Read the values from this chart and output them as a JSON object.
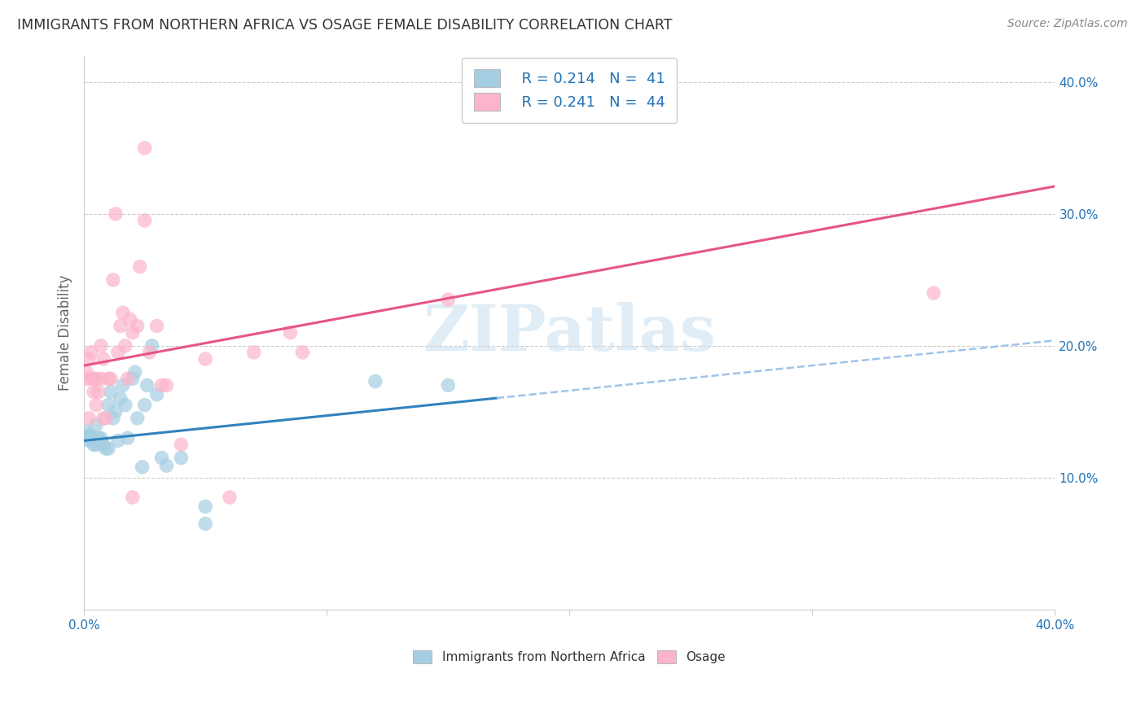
{
  "title": "IMMIGRANTS FROM NORTHERN AFRICA VS OSAGE FEMALE DISABILITY CORRELATION CHART",
  "source": "Source: ZipAtlas.com",
  "ylabel": "Female Disability",
  "watermark": "ZIPatlas",
  "xlim": [
    0.0,
    0.4
  ],
  "ylim": [
    0.0,
    0.42
  ],
  "yticks": [
    0.1,
    0.2,
    0.3,
    0.4
  ],
  "ytick_labels": [
    "10.0%",
    "20.0%",
    "30.0%",
    "40.0%"
  ],
  "legend_r1": "R = 0.214",
  "legend_n1": "N =  41",
  "legend_r2": "R = 0.241",
  "legend_n2": "N =  44",
  "blue_scatter_color": "#a6cee3",
  "pink_scatter_color": "#fbb4c9",
  "blue_line_color": "#3182bd",
  "pink_line_color": "#e6548a",
  "dashed_color": "#a0c4e8",
  "legend_text_color": "#2171b5",
  "title_color": "#333333",
  "source_color": "#888888",
  "grid_color": "#cccccc",
  "background_color": "#ffffff",
  "blue_points_x": [
    0.001,
    0.001,
    0.002,
    0.002,
    0.003,
    0.003,
    0.004,
    0.004,
    0.005,
    0.005,
    0.006,
    0.006,
    0.007,
    0.007,
    0.008,
    0.009,
    0.01,
    0.01,
    0.011,
    0.012,
    0.013,
    0.014,
    0.015,
    0.016,
    0.017,
    0.018,
    0.02,
    0.021,
    0.022,
    0.024,
    0.025,
    0.026,
    0.028,
    0.03,
    0.032,
    0.034,
    0.04,
    0.05,
    0.12,
    0.15,
    0.05
  ],
  "blue_points_y": [
    0.13,
    0.135,
    0.128,
    0.132,
    0.13,
    0.132,
    0.128,
    0.125,
    0.125,
    0.14,
    0.13,
    0.128,
    0.13,
    0.127,
    0.125,
    0.122,
    0.122,
    0.155,
    0.165,
    0.145,
    0.15,
    0.128,
    0.16,
    0.17,
    0.155,
    0.13,
    0.175,
    0.18,
    0.145,
    0.108,
    0.155,
    0.17,
    0.2,
    0.163,
    0.115,
    0.109,
    0.115,
    0.078,
    0.173,
    0.17,
    0.065
  ],
  "pink_points_x": [
    0.001,
    0.001,
    0.002,
    0.002,
    0.003,
    0.003,
    0.004,
    0.004,
    0.005,
    0.005,
    0.006,
    0.007,
    0.007,
    0.008,
    0.008,
    0.009,
    0.01,
    0.011,
    0.012,
    0.013,
    0.014,
    0.015,
    0.016,
    0.017,
    0.018,
    0.019,
    0.02,
    0.022,
    0.023,
    0.025,
    0.027,
    0.03,
    0.032,
    0.034,
    0.04,
    0.06,
    0.07,
    0.085,
    0.09,
    0.15,
    0.02,
    0.025,
    0.05,
    0.35
  ],
  "pink_points_y": [
    0.175,
    0.18,
    0.19,
    0.145,
    0.175,
    0.195,
    0.165,
    0.175,
    0.175,
    0.155,
    0.165,
    0.2,
    0.175,
    0.19,
    0.145,
    0.145,
    0.175,
    0.175,
    0.25,
    0.3,
    0.195,
    0.215,
    0.225,
    0.2,
    0.175,
    0.22,
    0.21,
    0.215,
    0.26,
    0.295,
    0.195,
    0.215,
    0.17,
    0.17,
    0.125,
    0.085,
    0.195,
    0.21,
    0.195,
    0.235,
    0.085,
    0.35,
    0.19,
    0.24
  ],
  "blue_line_x_solid_end": 0.17,
  "blue_line_x_dashed_start": 0.17,
  "blue_line_x_dashed_end": 0.4,
  "pink_line_intercept": 0.185,
  "pink_line_slope": 0.34,
  "blue_line_intercept": 0.128,
  "blue_line_slope": 0.19
}
